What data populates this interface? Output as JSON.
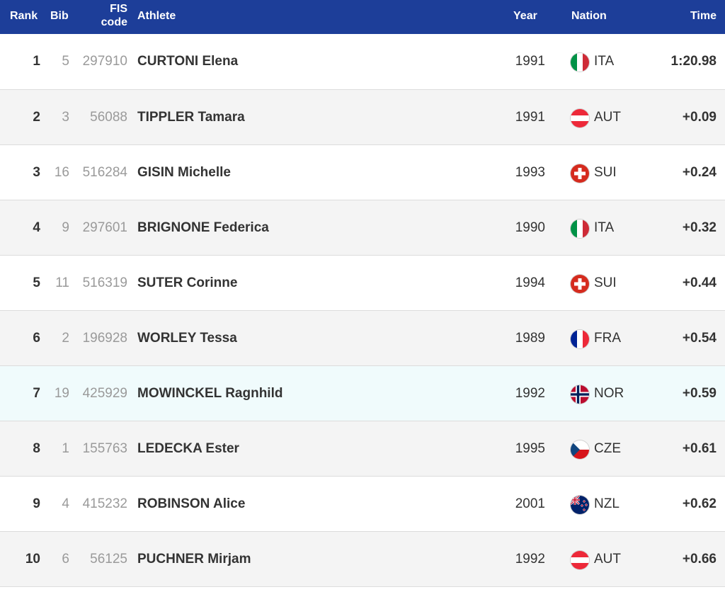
{
  "header": {
    "rank": "Rank",
    "bib": "Bib",
    "fis_line1": "FIS",
    "fis_line2": "code",
    "athlete": "Athlete",
    "year": "Year",
    "nation": "Nation",
    "time": "Time"
  },
  "colors": {
    "header_bg": "#1d3e99",
    "highlight_row": "#f0fbfc"
  },
  "rows": [
    {
      "rank": "1",
      "bib": "5",
      "fis": "297910",
      "athlete": "CURTONI Elena",
      "year": "1991",
      "nation": "ITA",
      "flag_icon": "italy-flag-icon",
      "time": "1:20.98"
    },
    {
      "rank": "2",
      "bib": "3",
      "fis": "56088",
      "athlete": "TIPPLER Tamara",
      "year": "1991",
      "nation": "AUT",
      "flag_icon": "austria-flag-icon",
      "time": "+0.09"
    },
    {
      "rank": "3",
      "bib": "16",
      "fis": "516284",
      "athlete": "GISIN Michelle",
      "year": "1993",
      "nation": "SUI",
      "flag_icon": "switzerland-flag-icon",
      "time": "+0.24"
    },
    {
      "rank": "4",
      "bib": "9",
      "fis": "297601",
      "athlete": "BRIGNONE Federica",
      "year": "1990",
      "nation": "ITA",
      "flag_icon": "italy-flag-icon",
      "time": "+0.32"
    },
    {
      "rank": "5",
      "bib": "11",
      "fis": "516319",
      "athlete": "SUTER Corinne",
      "year": "1994",
      "nation": "SUI",
      "flag_icon": "switzerland-flag-icon",
      "time": "+0.44"
    },
    {
      "rank": "6",
      "bib": "2",
      "fis": "196928",
      "athlete": "WORLEY Tessa",
      "year": "1989",
      "nation": "FRA",
      "flag_icon": "france-flag-icon",
      "time": "+0.54"
    },
    {
      "rank": "7",
      "bib": "19",
      "fis": "425929",
      "athlete": "MOWINCKEL Ragnhild",
      "year": "1992",
      "nation": "NOR",
      "flag_icon": "norway-flag-icon",
      "time": "+0.59",
      "highlight": true
    },
    {
      "rank": "8",
      "bib": "1",
      "fis": "155763",
      "athlete": "LEDECKA Ester",
      "year": "1995",
      "nation": "CZE",
      "flag_icon": "czech-flag-icon",
      "time": "+0.61"
    },
    {
      "rank": "9",
      "bib": "4",
      "fis": "415232",
      "athlete": "ROBINSON Alice",
      "year": "2001",
      "nation": "NZL",
      "flag_icon": "new-zealand-flag-icon",
      "time": "+0.62"
    },
    {
      "rank": "10",
      "bib": "6",
      "fis": "56125",
      "athlete": "PUCHNER Mirjam",
      "year": "1992",
      "nation": "AUT",
      "flag_icon": "austria-flag-icon",
      "time": "+0.66"
    }
  ]
}
